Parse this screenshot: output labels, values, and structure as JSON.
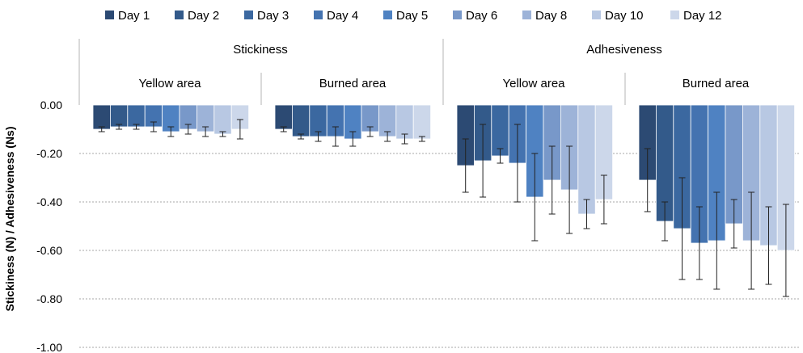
{
  "chart_data": {
    "type": "bar",
    "xlabel": "",
    "ylabel": "Stickiness (N)  / Adhesiveness (Ns)",
    "ylim": [
      -1.0,
      0.0
    ],
    "yticks": [
      "0.00",
      "-0.20",
      "-0.40",
      "-0.60",
      "-0.80",
      "-1.00"
    ],
    "ytick_values": [
      0.0,
      -0.2,
      -0.4,
      -0.6,
      -0.8,
      -1.0
    ],
    "grid": true,
    "legend_position": "top",
    "groups": [
      {
        "name": "Stickiness",
        "subgroups": [
          "Yellow area",
          "Burned area"
        ]
      },
      {
        "name": "Adhesiveness",
        "subgroups": [
          "Yellow area",
          "Burned area"
        ]
      }
    ],
    "categories": [
      "Stickiness - Yellow area",
      "Stickiness - Burned area",
      "Adhesiveness - Yellow area",
      "Adhesiveness - Burned area"
    ],
    "series": [
      {
        "name": "Day 1",
        "color": "#2c4a73",
        "values": [
          -0.1,
          -0.1,
          -0.25,
          -0.31
        ],
        "errors": [
          0.01,
          0.01,
          0.11,
          0.13
        ]
      },
      {
        "name": "Day 2",
        "color": "#335a8a",
        "values": [
          -0.09,
          -0.13,
          -0.23,
          -0.48
        ],
        "errors": [
          0.01,
          0.01,
          0.15,
          0.08
        ]
      },
      {
        "name": "Day 3",
        "color": "#3b68a0",
        "values": [
          -0.09,
          -0.13,
          -0.21,
          -0.51
        ],
        "errors": [
          0.01,
          0.02,
          0.03,
          0.21
        ]
      },
      {
        "name": "Day 4",
        "color": "#4473b0",
        "values": [
          -0.09,
          -0.13,
          -0.24,
          -0.57
        ],
        "errors": [
          0.02,
          0.04,
          0.16,
          0.15
        ]
      },
      {
        "name": "Day 5",
        "color": "#4f82c2",
        "values": [
          -0.11,
          -0.14,
          -0.38,
          -0.56
        ],
        "errors": [
          0.02,
          0.03,
          0.18,
          0.2
        ]
      },
      {
        "name": "Day 6",
        "color": "#7898c9",
        "values": [
          -0.1,
          -0.11,
          -0.31,
          -0.49
        ],
        "errors": [
          0.02,
          0.02,
          0.14,
          0.1
        ]
      },
      {
        "name": "Day 8",
        "color": "#9db3d8",
        "values": [
          -0.11,
          -0.13,
          -0.35,
          -0.56
        ],
        "errors": [
          0.02,
          0.02,
          0.18,
          0.2
        ]
      },
      {
        "name": "Day 10",
        "color": "#b8c8e3",
        "values": [
          -0.12,
          -0.14,
          -0.45,
          -0.58
        ],
        "errors": [
          0.01,
          0.02,
          0.06,
          0.16
        ]
      },
      {
        "name": "Day 12",
        "color": "#ccd7ea",
        "values": [
          -0.1,
          -0.14,
          -0.39,
          -0.6
        ],
        "errors": [
          0.04,
          0.01,
          0.1,
          0.19
        ]
      }
    ]
  }
}
